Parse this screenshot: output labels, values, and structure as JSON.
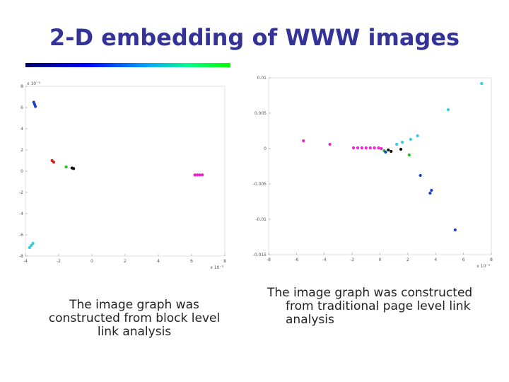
{
  "title": "2-D embedding of WWW images",
  "colors": {
    "title": "#333399",
    "gradient": [
      "#000066",
      "#0000ff",
      "#00aaff",
      "#00ff88",
      "#00ff00"
    ]
  },
  "captions": {
    "left": [
      "The image graph was",
      "constructed from block level",
      "link analysis"
    ],
    "right": [
      "The image graph was constructed",
      "from traditional page level link",
      "analysis"
    ]
  },
  "chart_data": [
    {
      "type": "scatter",
      "title": "",
      "xlabel": "",
      "ylabel": "",
      "scale_x": "x 10⁻³",
      "scale_y": "x 10⁻³",
      "xlim": [
        -4,
        8
      ],
      "ylim": [
        -8,
        8
      ],
      "x_ticks": [
        "-4",
        "-2",
        "0",
        "2",
        "4",
        "6",
        "8"
      ],
      "y_ticks": [
        "-8",
        "-6",
        "-4",
        "-2",
        "0",
        "2",
        "4",
        "6",
        "8"
      ],
      "x_tick_values": [
        -4,
        -2,
        0,
        2,
        4,
        6,
        8
      ],
      "y_tick_values": [
        -8,
        -6,
        -4,
        -2,
        0,
        2,
        4,
        6,
        8
      ],
      "series": [
        {
          "color": "#1a3fcc",
          "points": [
            [
              -3.5,
              6.5
            ],
            [
              -3.45,
              6.3
            ],
            [
              -3.4,
              6.1
            ]
          ]
        },
        {
          "color": "#cc2222",
          "points": [
            [
              -2.4,
              1.0
            ],
            [
              -2.3,
              0.85
            ]
          ]
        },
        {
          "color": "#22bb22",
          "points": [
            [
              -1.55,
              0.4
            ]
          ]
        },
        {
          "color": "#111111",
          "points": [
            [
              -1.2,
              0.3
            ],
            [
              -1.1,
              0.25
            ]
          ]
        },
        {
          "color": "#ee22cc",
          "points": [
            [
              6.2,
              -0.35
            ],
            [
              6.35,
              -0.35
            ],
            [
              6.5,
              -0.35
            ],
            [
              6.65,
              -0.35
            ]
          ]
        },
        {
          "color": "#33ccdd",
          "points": [
            [
              -3.75,
              -7.2
            ],
            [
              -3.65,
              -7.0
            ],
            [
              -3.55,
              -6.8
            ]
          ]
        }
      ]
    },
    {
      "type": "scatter",
      "title": "",
      "xlabel": "",
      "ylabel": "",
      "scale_x": "x 10⁻³",
      "scale_y": "",
      "xlim": [
        -8,
        8
      ],
      "ylim": [
        -0.015,
        0.01
      ],
      "x_ticks": [
        "-8",
        "-6",
        "-4",
        "-2",
        "0",
        "2",
        "4",
        "6",
        "8"
      ],
      "y_ticks": [
        "-0.015",
        "-0.01",
        "-0.005",
        "0",
        "0.005",
        "0.01"
      ],
      "x_tick_values": [
        -8,
        -6,
        -4,
        -2,
        0,
        2,
        4,
        6,
        8
      ],
      "y_tick_values": [
        -0.015,
        -0.01,
        -0.005,
        0,
        0.005,
        0.01
      ],
      "series": [
        {
          "color": "#33ccdd",
          "points": [
            [
              7.3,
              0.0092
            ],
            [
              4.9,
              0.0055
            ],
            [
              2.7,
              0.0018
            ],
            [
              2.2,
              0.0013
            ],
            [
              1.6,
              0.0009
            ],
            [
              1.2,
              0.0006
            ]
          ]
        },
        {
          "color": "#ee22cc",
          "points": [
            [
              -5.5,
              0.0011
            ],
            [
              -3.6,
              0.0006
            ],
            [
              -1.9,
              0.0001
            ],
            [
              -1.6,
              0.0001
            ],
            [
              -1.3,
              0.0001
            ],
            [
              -1.0,
              0.0001
            ],
            [
              -0.7,
              0.0001
            ],
            [
              -0.4,
              0.0001
            ],
            [
              -0.1,
              0.0001
            ],
            [
              0.1,
              0.0
            ]
          ]
        },
        {
          "color": "#111111",
          "points": [
            [
              0.6,
              -0.0002
            ],
            [
              0.8,
              -0.0004
            ],
            [
              1.5,
              -0.0001
            ]
          ]
        },
        {
          "color": "#22bb22",
          "points": [
            [
              0.3,
              -0.0003
            ],
            [
              2.1,
              -0.0009
            ]
          ]
        },
        {
          "color": "#1a3fcc",
          "points": [
            [
              0.4,
              -0.0005
            ],
            [
              2.9,
              -0.0038
            ],
            [
              3.7,
              -0.0059
            ],
            [
              3.6,
              -0.0063
            ],
            [
              5.4,
              -0.0115
            ]
          ]
        }
      ]
    }
  ]
}
